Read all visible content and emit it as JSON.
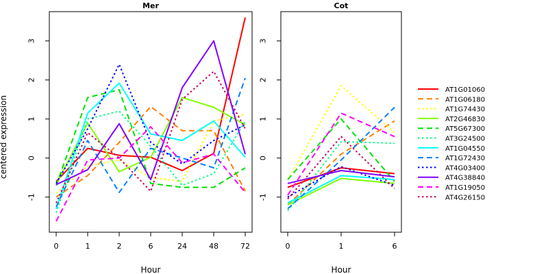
{
  "chart_data": {
    "type": "line",
    "ylabel": "centered expression",
    "legend_position": "right",
    "series_styles": [
      {
        "name": "AT1G01060",
        "color": "#FF0000",
        "dash": "solid"
      },
      {
        "name": "AT1G06180",
        "color": "#FF8000",
        "dash": "dashed"
      },
      {
        "name": "AT1G74430",
        "color": "#FFFF00",
        "dash": "dotted"
      },
      {
        "name": "AT2G46830",
        "color": "#80FF00",
        "dash": "solid"
      },
      {
        "name": "AT5G67300",
        "color": "#00E000",
        "dash": "dashed"
      },
      {
        "name": "AT3G24500",
        "color": "#00FF80",
        "dash": "dotted"
      },
      {
        "name": "AT1G04550",
        "color": "#00FFFF",
        "dash": "solid"
      },
      {
        "name": "AT1G72430",
        "color": "#0080FF",
        "dash": "dashed"
      },
      {
        "name": "AT4G03400",
        "color": "#0000FF",
        "dash": "dotted"
      },
      {
        "name": "AT4G38840",
        "color": "#8000FF",
        "dash": "solid"
      },
      {
        "name": "AT1G19050",
        "color": "#FF00FF",
        "dash": "dashed"
      },
      {
        "name": "AT4G26150",
        "color": "#C00060",
        "dash": "dotted"
      }
    ],
    "panels": [
      {
        "title": "Mer",
        "xlabel": "Hour",
        "categories": [
          "0",
          "1",
          "2",
          "6",
          "24",
          "48",
          "72"
        ],
        "ylim": [
          -1.9,
          3.75
        ],
        "yticks": [
          -1,
          0,
          1,
          2,
          3
        ],
        "series": [
          {
            "name": "AT1G01060",
            "values": [
              -0.6,
              0.25,
              0.07,
              0.02,
              -0.32,
              0.12,
              3.6
            ]
          },
          {
            "name": "AT1G06180",
            "values": [
              -1.0,
              -0.45,
              0.4,
              1.32,
              0.7,
              0.7,
              -0.85
            ]
          },
          {
            "name": "AT1G74430",
            "values": [
              -0.9,
              -0.2,
              -0.05,
              -0.5,
              -0.6,
              0.95,
              1.12
            ]
          },
          {
            "name": "AT2G46830",
            "values": [
              -0.68,
              0.9,
              -0.35,
              0.02,
              1.55,
              1.3,
              0.85
            ]
          },
          {
            "name": "AT5G67300",
            "values": [
              -0.7,
              1.55,
              1.75,
              -0.65,
              -0.75,
              -0.75,
              -0.25
            ]
          },
          {
            "name": "AT3G24500",
            "values": [
              -1.4,
              1.0,
              1.2,
              0.3,
              -0.7,
              -0.4,
              0.95
            ]
          },
          {
            "name": "AT1G04550",
            "values": [
              -1.3,
              1.15,
              1.92,
              0.62,
              0.45,
              0.95,
              0.02
            ]
          },
          {
            "name": "AT1G72430",
            "values": [
              -1.25,
              0.45,
              -0.88,
              0.25,
              0.0,
              -0.25,
              2.05
            ]
          },
          {
            "name": "AT4G03400",
            "values": [
              -0.65,
              0.75,
              2.4,
              0.4,
              -0.15,
              0.45,
              0.85
            ]
          },
          {
            "name": "AT4G38840",
            "values": [
              -0.68,
              -0.3,
              0.88,
              -0.55,
              1.8,
              3.0,
              0.1
            ]
          },
          {
            "name": "AT1G19050",
            "values": [
              -1.62,
              -0.05,
              0.0,
              0.8,
              -0.12,
              0.1,
              -0.88
            ]
          },
          {
            "name": "AT4G26150",
            "values": [
              -1.15,
              0.65,
              0.0,
              -0.85,
              1.5,
              2.22,
              0.75
            ]
          }
        ]
      },
      {
        "title": "Cot",
        "xlabel": "Hour",
        "categories": [
          "0",
          "1",
          "6"
        ],
        "ylim": [
          -1.9,
          3.75
        ],
        "yticks": [
          -1,
          0,
          1,
          2,
          3
        ],
        "series": [
          {
            "name": "AT1G01060",
            "values": [
              -0.75,
              -0.25,
              -0.4
            ]
          },
          {
            "name": "AT1G06180",
            "values": [
              -1.2,
              0.1,
              0.95
            ]
          },
          {
            "name": "AT1G74430",
            "values": [
              -0.55,
              1.85,
              0.65
            ]
          },
          {
            "name": "AT2G46830",
            "values": [
              -1.2,
              -0.52,
              -0.65
            ]
          },
          {
            "name": "AT5G67300",
            "values": [
              -0.55,
              1.0,
              -0.6
            ]
          },
          {
            "name": "AT3G24500",
            "values": [
              -1.35,
              0.42,
              0.38
            ]
          },
          {
            "name": "AT1G04550",
            "values": [
              -1.15,
              -0.45,
              -0.55
            ]
          },
          {
            "name": "AT1G72430",
            "values": [
              -1.3,
              -0.05,
              1.3
            ]
          },
          {
            "name": "AT4G03400",
            "values": [
              -1.0,
              -0.22,
              -0.7
            ]
          },
          {
            "name": "AT4G38840",
            "values": [
              -0.65,
              -0.32,
              -0.48
            ]
          },
          {
            "name": "AT1G19050",
            "values": [
              -0.95,
              1.15,
              0.55
            ]
          },
          {
            "name": "AT4G26150",
            "values": [
              -1.05,
              0.55,
              -0.78
            ]
          }
        ]
      }
    ]
  }
}
